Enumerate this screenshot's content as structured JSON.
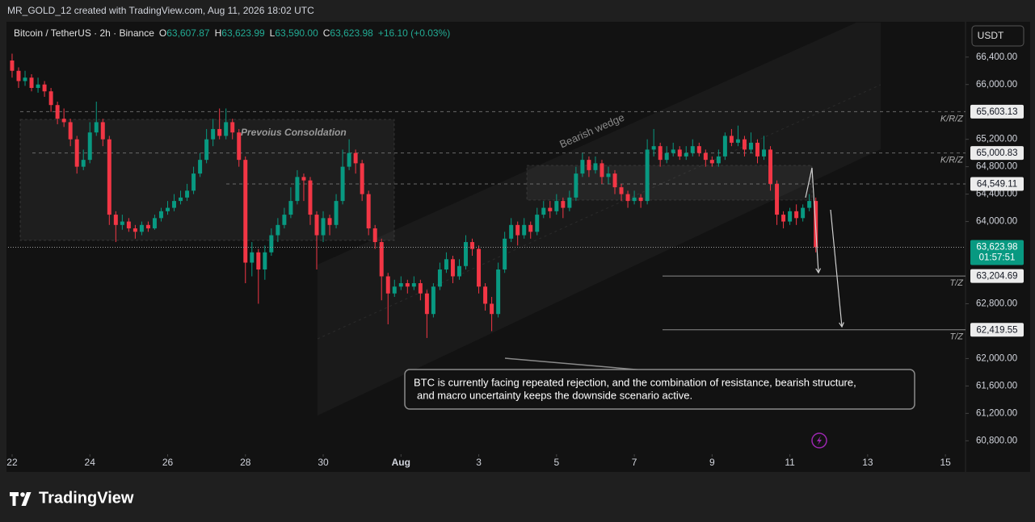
{
  "header": {
    "attribution": "MR_GOLD_12 created with TradingView.com, Aug 11, 2026 18:02 UTC"
  },
  "chart_data": {
    "type": "candlestick",
    "symbol": "Bitcoin / TetherUS · 2h · Binance",
    "ohlc_header": [
      {
        "key": "O",
        "value": "63,607.87"
      },
      {
        "key": "H",
        "value": "63,623.99"
      },
      {
        "key": "L",
        "value": "63,590.00"
      },
      {
        "key": "C",
        "value": "63,623.98"
      }
    ],
    "change": "+16.10 (+0.03%)",
    "currency": "USDT",
    "open": [
      66350,
      66200,
      66050,
      66100,
      65950,
      66000,
      65900,
      65700,
      65500,
      65450,
      65200,
      64800,
      64900,
      65300,
      65450,
      65200,
      64100,
      63950,
      64000,
      63900,
      63850,
      63950,
      63900,
      64050,
      64150,
      64200,
      64300,
      64350,
      64450,
      64700,
      64900,
      65200,
      65350,
      65250,
      65450,
      65300,
      64900,
      63400,
      63550,
      63300,
      63550,
      63800,
      63950,
      64100,
      64300,
      64650,
      64600,
      64100,
      63800,
      64050,
      63950,
      64300,
      64800,
      65000,
      64850,
      64400,
      63900,
      63700,
      63200,
      62950,
      63050,
      63100,
      63050,
      63100,
      62950,
      62650,
      63050,
      63300,
      63450,
      63200,
      63350,
      63700,
      63600,
      63050,
      62800,
      62650,
      63300,
      63750,
      63950,
      63800,
      63950,
      63850,
      64100,
      64200,
      64150,
      64300,
      64200,
      64350,
      64700,
      64900,
      64750,
      64850,
      64650,
      64700,
      64500,
      64400,
      64300,
      64350,
      64300,
      65050,
      65100,
      64900,
      65000,
      65050,
      64950,
      65000,
      65100,
      65000,
      64900,
      64850,
      64950,
      65250,
      65150,
      65200,
      65050,
      65150,
      64950,
      65050,
      64550,
      64100,
      64000,
      64150,
      64050,
      64200,
      64300
    ],
    "high": [
      66450,
      66250,
      66200,
      66150,
      66100,
      66050,
      65950,
      65750,
      65650,
      65500,
      65250,
      65050,
      65450,
      65750,
      65500,
      65250,
      64150,
      64100,
      64050,
      63950,
      64000,
      64000,
      64100,
      64200,
      64300,
      64400,
      64450,
      64550,
      64800,
      65000,
      65350,
      65500,
      65650,
      65650,
      65500,
      65350,
      64950,
      63700,
      63600,
      63650,
      63900,
      64050,
      64200,
      64500,
      64750,
      64700,
      64650,
      64150,
      64150,
      64100,
      64400,
      65050,
      65200,
      65050,
      64900,
      64450,
      63950,
      63750,
      63250,
      63150,
      63200,
      63150,
      63200,
      63150,
      63000,
      63100,
      63400,
      63550,
      63500,
      63450,
      63800,
      63750,
      63650,
      63100,
      62900,
      63400,
      63850,
      64050,
      64000,
      64050,
      64000,
      64200,
      64300,
      64300,
      64400,
      64350,
      64450,
      64800,
      65000,
      64950,
      64950,
      64900,
      64800,
      64750,
      64550,
      64450,
      64450,
      64400,
      65200,
      65350,
      65150,
      65100,
      65150,
      65100,
      65100,
      65200,
      65150,
      65050,
      64950,
      65050,
      65300,
      65350,
      65400,
      65250,
      65300,
      65200,
      65250,
      65100,
      64600,
      64150,
      64200,
      64250,
      64250,
      64400,
      64350
    ],
    "low": [
      66100,
      65950,
      65980,
      65900,
      65880,
      65820,
      65600,
      65420,
      65380,
      65100,
      64700,
      64750,
      64850,
      65250,
      65100,
      63950,
      63700,
      63880,
      63850,
      63750,
      63800,
      63850,
      63880,
      64000,
      64100,
      64150,
      64250,
      64300,
      64400,
      64650,
      64850,
      65100,
      65200,
      65200,
      65200,
      64800,
      63100,
      63200,
      62800,
      63150,
      63500,
      63700,
      63900,
      64050,
      64250,
      64300,
      63950,
      63300,
      63700,
      63800,
      63900,
      64250,
      64750,
      64700,
      64300,
      63800,
      63600,
      62850,
      62500,
      62900,
      63000,
      62950,
      63000,
      62850,
      62300,
      62600,
      63000,
      63250,
      63100,
      63150,
      63300,
      63500,
      62950,
      62700,
      62400,
      62600,
      63250,
      63700,
      63650,
      63750,
      63750,
      63800,
      64050,
      64050,
      64100,
      64050,
      64150,
      64300,
      64650,
      64650,
      64700,
      64550,
      64550,
      64400,
      64300,
      64200,
      64250,
      64200,
      64250,
      64950,
      64800,
      64850,
      64950,
      64900,
      64900,
      64950,
      64950,
      64800,
      64800,
      64800,
      64900,
      65100,
      65100,
      64950,
      65000,
      64850,
      64900,
      64450,
      63950,
      63900,
      63950,
      63950,
      64000,
      64150,
      63550
    ],
    "close": [
      66200,
      66050,
      66100,
      65950,
      66000,
      65900,
      65700,
      65500,
      65450,
      65200,
      64800,
      64900,
      65300,
      65450,
      65200,
      64100,
      63950,
      64000,
      63900,
      63850,
      63950,
      63900,
      64050,
      64150,
      64200,
      64300,
      64350,
      64450,
      64700,
      64900,
      65200,
      65350,
      65250,
      65450,
      65300,
      64900,
      63400,
      63550,
      63300,
      63550,
      63800,
      63950,
      64100,
      64300,
      64650,
      64600,
      64100,
      63800,
      64050,
      63950,
      64300,
      64800,
      65000,
      64850,
      64400,
      63900,
      63700,
      63200,
      62950,
      63050,
      63100,
      63050,
      63100,
      62950,
      62650,
      63050,
      63300,
      63450,
      63200,
      63350,
      63700,
      63600,
      63050,
      62800,
      62650,
      63300,
      63750,
      63950,
      63800,
      63950,
      63850,
      64100,
      64200,
      64150,
      64300,
      64200,
      64350,
      64700,
      64900,
      64750,
      64850,
      64650,
      64700,
      64500,
      64400,
      64300,
      64350,
      64300,
      65050,
      65100,
      64900,
      65000,
      65050,
      64950,
      65000,
      65100,
      65000,
      64900,
      64850,
      64950,
      65250,
      65150,
      65200,
      65050,
      65150,
      64950,
      65050,
      64550,
      64100,
      64000,
      64150,
      64050,
      64200,
      64300,
      63624
    ],
    "up_color": "#089981",
    "down_color": "#f23645",
    "ylim": [
      60580,
      66880
    ],
    "yticks": [
      {
        "value": 60800,
        "label": "60,800.00"
      },
      {
        "value": 61200,
        "label": "61,200.00"
      },
      {
        "value": 61600,
        "label": "61,600.00"
      },
      {
        "value": 62000,
        "label": "62,000.00"
      },
      {
        "value": 62800,
        "label": "62,800.00"
      },
      {
        "value": 64000,
        "label": "64,000.00"
      },
      {
        "value": 64400,
        "label": "64,400.00"
      },
      {
        "value": 64800,
        "label": "64,800.00"
      },
      {
        "value": 65200,
        "label": "65,200.00"
      },
      {
        "value": 66000,
        "label": "66,000.00"
      },
      {
        "value": 66400,
        "label": "66,400.00"
      }
    ],
    "xlim": [
      -0.62,
      147.1
    ],
    "xticks": [
      {
        "value": 0,
        "label": "22"
      },
      {
        "value": 12,
        "label": "24"
      },
      {
        "value": 24,
        "label": "26"
      },
      {
        "value": 36,
        "label": "28"
      },
      {
        "value": 48,
        "label": "30"
      },
      {
        "value": 60,
        "label": "Aug"
      },
      {
        "value": 72,
        "label": "3"
      },
      {
        "value": 84,
        "label": "5"
      },
      {
        "value": 96,
        "label": "7"
      },
      {
        "value": 108,
        "label": "9"
      },
      {
        "value": 120,
        "label": "11"
      },
      {
        "value": 132,
        "label": "13"
      },
      {
        "value": 144,
        "label": "15"
      }
    ],
    "levels": [
      {
        "value": 65603.13,
        "label": "65,603.13",
        "tag": "K/R/Z"
      },
      {
        "value": 65000.83,
        "label": "65,000.83",
        "tag": "K/R/Z"
      },
      {
        "value": 64549.11,
        "label": "64,549.11"
      },
      {
        "value": 63204.69,
        "label": "63,204.69",
        "tag": "T/Z"
      },
      {
        "value": 62419.55,
        "label": "62,419.55",
        "tag": "T/Z"
      }
    ],
    "last_price": {
      "value": 63623.98,
      "label": "63,623.98",
      "countdown": "01:57:51"
    },
    "annotations": {
      "consolidation": "Prevoius Consoldation",
      "wedge": "Bearish wedge",
      "note": [
        "BTC is currently facing repeated rejection, and the combination of resistance, bearish structure,",
        "and macro uncertainty keeps the downside scenario active."
      ]
    },
    "grid": false
  },
  "footer": {
    "brand": "TradingView"
  }
}
